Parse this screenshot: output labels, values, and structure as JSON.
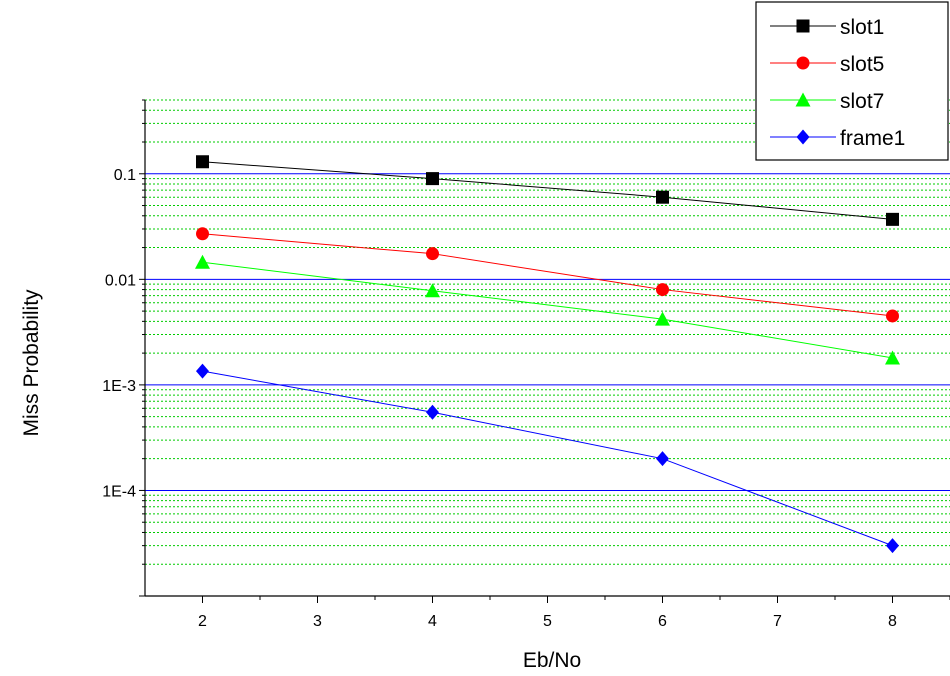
{
  "chart_data": {
    "type": "line",
    "xlabel": "Eb/No",
    "ylabel": "Miss Probability",
    "xlim": [
      1.5,
      8.5
    ],
    "ylim": [
      1e-05,
      0.5
    ],
    "yscale": "log",
    "x_ticks": [
      "2",
      "3",
      "4",
      "5",
      "6",
      "7",
      "8"
    ],
    "y_ticks": [
      {
        "value": 0.1,
        "label": "0.1"
      },
      {
        "value": 0.01,
        "label": "0.01"
      },
      {
        "value": 0.001,
        "label": "1E-3"
      },
      {
        "value": 0.0001,
        "label": "1E-4"
      }
    ],
    "grid": {
      "major": true,
      "minor": true,
      "major_color": "#0000ff",
      "minor_color": "#00cc00"
    },
    "legend_position": "top-right",
    "x": [
      2,
      4,
      6,
      8
    ],
    "series": [
      {
        "name": "slot1",
        "color": "#000000",
        "marker": "square",
        "values": [
          0.13,
          0.09,
          0.06,
          0.037
        ]
      },
      {
        "name": "slot5",
        "color": "#ff0000",
        "marker": "circle",
        "values": [
          0.027,
          0.0175,
          0.008,
          0.0045
        ]
      },
      {
        "name": "slot7",
        "color": "#00ff00",
        "marker": "triangle",
        "values": [
          0.0145,
          0.0078,
          0.0042,
          0.0018
        ]
      },
      {
        "name": "frame1",
        "color": "#0000ff",
        "marker": "diamond",
        "values": [
          0.00135,
          0.00055,
          0.0002,
          3e-05
        ]
      }
    ]
  }
}
